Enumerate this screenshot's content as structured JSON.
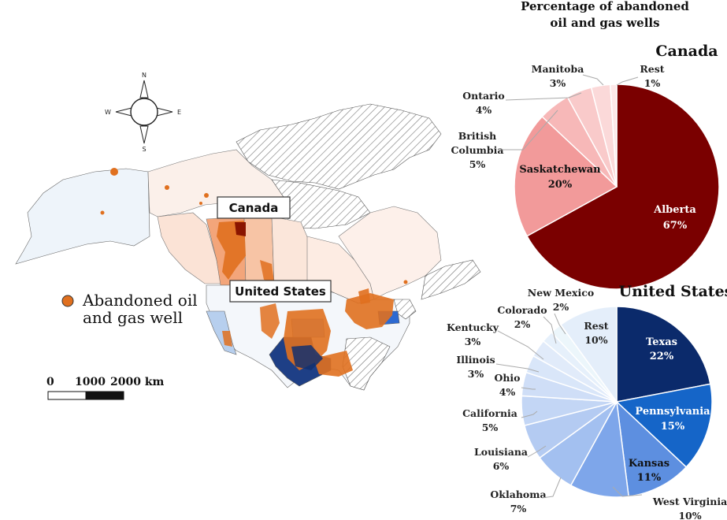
{
  "figure": {
    "main_title_line1": "Percentage of abandoned",
    "main_title_line2": "oil and gas wells"
  },
  "map": {
    "label_canada": "Canada",
    "label_us": "United States",
    "legend_line1": "Abandoned oil",
    "legend_line2": "and gas well",
    "legend_color": "#e0701f",
    "scale_0": "0",
    "scale_1000": "1000",
    "scale_2000": "2000 km",
    "compass_n": "N",
    "compass_s": "S",
    "compass_e": "E",
    "compass_w": "W"
  },
  "chart_data": [
    {
      "type": "pie",
      "title": "Canada",
      "start_angle_deg": 0,
      "direction": "clockwise",
      "slices": [
        {
          "label": "Alberta",
          "value": 67,
          "display": "67%",
          "color": "#7a0000"
        },
        {
          "label": "Saskatchewan",
          "value": 20,
          "display": "20%",
          "color": "#f29a9a"
        },
        {
          "label": "British Columbia",
          "value": 5,
          "display": "5%",
          "color": "#f7b8b8"
        },
        {
          "label": "Ontario",
          "value": 4,
          "display": "4%",
          "color": "#f9caca"
        },
        {
          "label": "Manitoba",
          "value": 3,
          "display": "3%",
          "color": "#fbd9d9"
        },
        {
          "label": "Rest",
          "value": 1,
          "display": "1%",
          "color": "#fde8e8"
        }
      ]
    },
    {
      "type": "pie",
      "title": "United States",
      "start_angle_deg": 0,
      "direction": "clockwise",
      "slices": [
        {
          "label": "Texas",
          "value": 22,
          "display": "22%",
          "color": "#0b2a6b"
        },
        {
          "label": "Pennsylvania",
          "value": 15,
          "display": "15%",
          "color": "#1565c8"
        },
        {
          "label": "Kansas",
          "value": 11,
          "display": "11%",
          "color": "#5d8fe0"
        },
        {
          "label": "West Virginia",
          "value": 10,
          "display": "10%",
          "color": "#7ea6ea"
        },
        {
          "label": "Oklahoma",
          "value": 7,
          "display": "7%",
          "color": "#a3c0f0"
        },
        {
          "label": "Louisiana",
          "value": 6,
          "display": "6%",
          "color": "#b4cbf2"
        },
        {
          "label": "California",
          "value": 5,
          "display": "5%",
          "color": "#c3d6f5"
        },
        {
          "label": "Ohio",
          "value": 4,
          "display": "4%",
          "color": "#cfdef7"
        },
        {
          "label": "Illinois",
          "value": 3,
          "display": "3%",
          "color": "#d9e6f9"
        },
        {
          "label": "Kentucky",
          "value": 3,
          "display": "3%",
          "color": "#e1ebfa"
        },
        {
          "label": "Colorado",
          "value": 2,
          "display": "2%",
          "color": "#e6f0fb"
        },
        {
          "label": "New Mexico",
          "value": 2,
          "display": "2%",
          "color": "#ecf6fb"
        },
        {
          "label": "Rest",
          "value": 10,
          "display": "10%",
          "color": "#e4eefa"
        }
      ]
    }
  ]
}
